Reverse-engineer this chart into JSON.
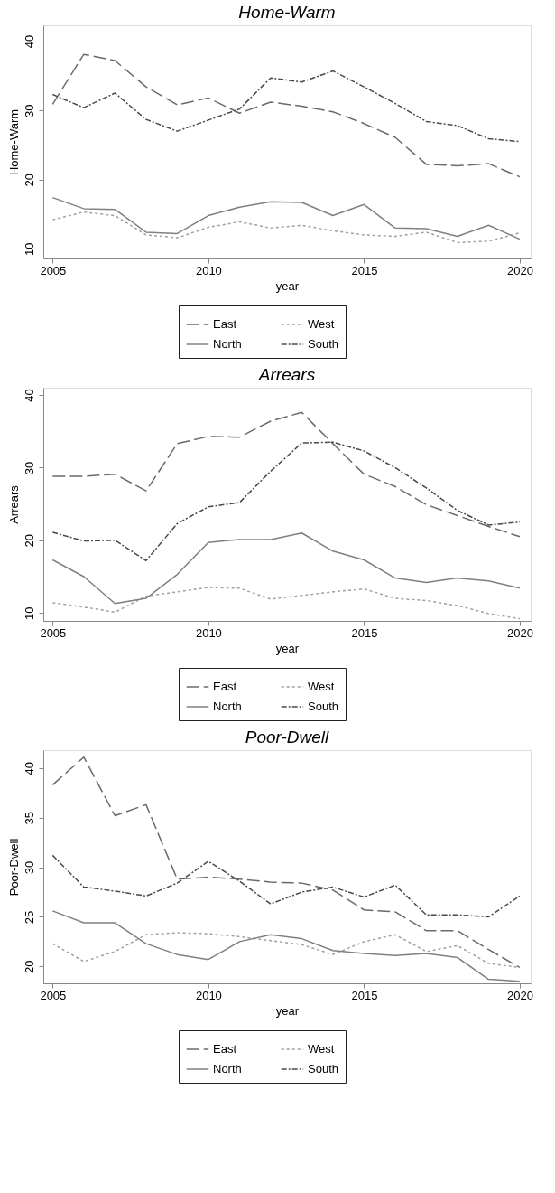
{
  "chart_data": [
    {
      "type": "line",
      "title": "Home-Warm",
      "xlabel": "year",
      "ylabel": "Home-Warm",
      "x": [
        2005,
        2006,
        2007,
        2008,
        2009,
        2010,
        2011,
        2012,
        2013,
        2014,
        2015,
        2016,
        2017,
        2018,
        2019,
        2020
      ],
      "xlim": [
        2004.7,
        2020.35
      ],
      "xticks": [
        2005,
        2010,
        2015,
        2020
      ],
      "ylim": [
        8.6,
        42.3
      ],
      "yticks": [
        10,
        20,
        30,
        40
      ],
      "grid": false,
      "legend": "bottom",
      "marker": "none",
      "series": [
        {
          "name": "East",
          "color": "#6a6a6a",
          "line_style": "dashed",
          "values": [
            30.9,
            38.1,
            37.2,
            33.4,
            30.8,
            31.8,
            29.6,
            31.2,
            30.6,
            29.8,
            28.1,
            26.1,
            22.2,
            22.0,
            22.3,
            20.4
          ]
        },
        {
          "name": "West",
          "color": "#a0a0a0",
          "line_style": "dotted",
          "values": [
            14.2,
            15.3,
            14.8,
            12.0,
            11.6,
            13.1,
            13.9,
            13.0,
            13.4,
            12.6,
            12.0,
            11.8,
            12.4,
            10.9,
            11.1,
            12.3
          ]
        },
        {
          "name": "North",
          "color": "#808080",
          "line_style": "solid",
          "values": [
            17.4,
            15.8,
            15.7,
            12.4,
            12.2,
            14.8,
            16.0,
            16.8,
            16.7,
            14.8,
            16.4,
            13.0,
            12.9,
            11.8,
            13.4,
            11.4
          ]
        },
        {
          "name": "South",
          "color": "#4a4a4a",
          "line_style": "dashdot",
          "values": [
            32.3,
            30.4,
            32.5,
            28.7,
            27.0,
            28.6,
            30.2,
            34.7,
            34.1,
            35.7,
            33.4,
            31.0,
            28.4,
            27.8,
            25.9,
            25.5
          ]
        }
      ]
    },
    {
      "type": "line",
      "title": "Arrears",
      "xlabel": "year",
      "ylabel": "Arrears",
      "x": [
        2005,
        2006,
        2007,
        2008,
        2009,
        2010,
        2011,
        2012,
        2013,
        2014,
        2015,
        2016,
        2017,
        2018,
        2019,
        2020
      ],
      "xlim": [
        2004.7,
        2020.35
      ],
      "xticks": [
        2005,
        2010,
        2015,
        2020
      ],
      "ylim": [
        8.9,
        41
      ],
      "yticks": [
        10,
        20,
        30,
        40
      ],
      "grid": false,
      "legend": "bottom",
      "marker": "none",
      "series": [
        {
          "name": "East",
          "color": "#6a6a6a",
          "line_style": "dashed",
          "values": [
            28.8,
            28.8,
            29.1,
            26.8,
            33.3,
            34.3,
            34.2,
            36.4,
            37.6,
            33.3,
            29.1,
            27.4,
            24.9,
            23.4,
            21.9,
            20.5
          ]
        },
        {
          "name": "West",
          "color": "#a0a0a0",
          "line_style": "dotted",
          "values": [
            11.4,
            10.8,
            10.1,
            12.3,
            12.9,
            13.5,
            13.4,
            11.9,
            12.4,
            12.9,
            13.3,
            12.0,
            11.7,
            11.0,
            9.9,
            9.2
          ]
        },
        {
          "name": "North",
          "color": "#808080",
          "line_style": "solid",
          "values": [
            17.3,
            15.0,
            11.3,
            12.0,
            15.3,
            19.7,
            20.1,
            20.1,
            21.0,
            18.5,
            17.3,
            14.8,
            14.2,
            14.8,
            14.4,
            13.4
          ]
        },
        {
          "name": "South",
          "color": "#4a4a4a",
          "line_style": "dashdot",
          "values": [
            21.1,
            19.9,
            20.0,
            17.2,
            22.3,
            24.6,
            25.2,
            29.5,
            33.4,
            33.5,
            32.3,
            30.0,
            27.2,
            24.1,
            22.1,
            22.5
          ]
        }
      ]
    },
    {
      "type": "line",
      "title": "Poor-Dwell",
      "xlabel": "year",
      "ylabel": "Poor-Dwell",
      "x": [
        2005,
        2006,
        2007,
        2008,
        2009,
        2010,
        2011,
        2012,
        2013,
        2014,
        2015,
        2016,
        2017,
        2018,
        2019,
        2020
      ],
      "xlim": [
        2004.7,
        2020.35
      ],
      "xticks": [
        2005,
        2010,
        2015,
        2020
      ],
      "ylim": [
        18.3,
        41.8
      ],
      "yticks": [
        20,
        25,
        30,
        35,
        40
      ],
      "grid": false,
      "legend": "bottom",
      "marker": "none",
      "series": [
        {
          "name": "East",
          "color": "#6a6a6a",
          "line_style": "dashed",
          "values": [
            38.3,
            41.1,
            35.2,
            36.3,
            28.8,
            29.0,
            28.8,
            28.5,
            28.4,
            27.7,
            25.7,
            25.5,
            23.6,
            23.6,
            21.7,
            19.9
          ]
        },
        {
          "name": "West",
          "color": "#a0a0a0",
          "line_style": "dotted",
          "values": [
            22.3,
            20.5,
            21.5,
            23.2,
            23.4,
            23.3,
            23.0,
            22.6,
            22.2,
            21.2,
            22.5,
            23.2,
            21.5,
            22.1,
            20.3,
            19.9
          ]
        },
        {
          "name": "North",
          "color": "#808080",
          "line_style": "solid",
          "values": [
            25.6,
            24.4,
            24.4,
            22.3,
            21.2,
            20.7,
            22.5,
            23.2,
            22.8,
            21.6,
            21.3,
            21.1,
            21.3,
            20.9,
            18.7,
            18.5
          ]
        },
        {
          "name": "South",
          "color": "#4a4a4a",
          "line_style": "dashdot",
          "values": [
            31.2,
            28.0,
            27.6,
            27.1,
            28.4,
            30.6,
            28.6,
            26.3,
            27.5,
            28.0,
            27.0,
            28.2,
            25.2,
            25.2,
            25.0,
            27.1
          ]
        }
      ]
    }
  ]
}
